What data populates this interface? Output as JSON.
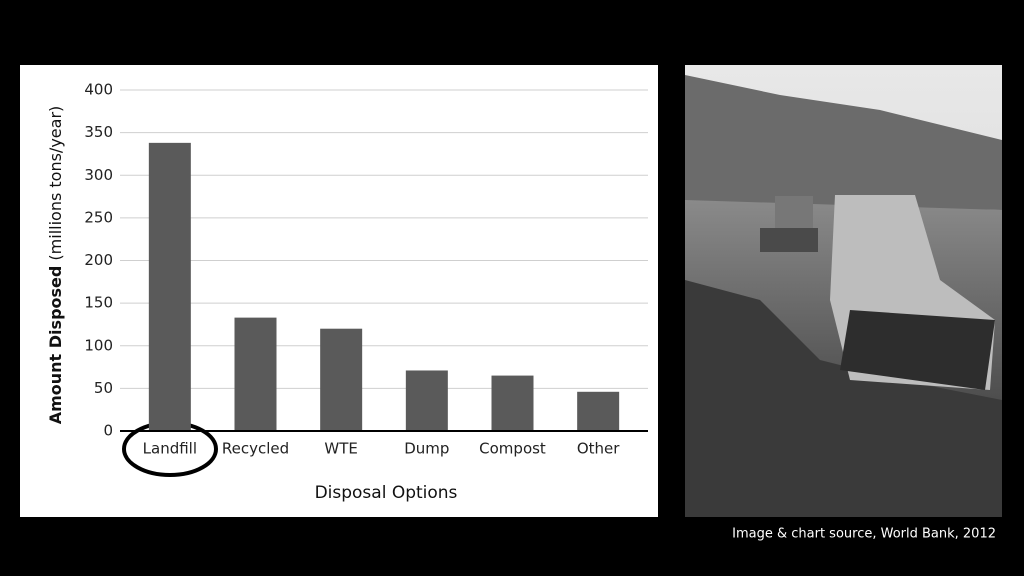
{
  "chart_data": {
    "type": "bar",
    "x_label": "Disposal Options",
    "y_label": "Amount Disposed",
    "y_label_unit": "(millions tons/year)",
    "categories": [
      "Landfill",
      "Recycled",
      "WTE",
      "Dump",
      "Compost",
      "Other"
    ],
    "values": [
      338,
      133,
      120,
      71,
      65,
      46
    ],
    "color": "#5a5a5a",
    "ylim": [
      0,
      400
    ],
    "yticks": [
      0,
      50,
      100,
      150,
      200,
      250,
      300,
      350,
      400
    ],
    "grid": true
  },
  "caption": "Image & chart source, World Bank, 2012"
}
